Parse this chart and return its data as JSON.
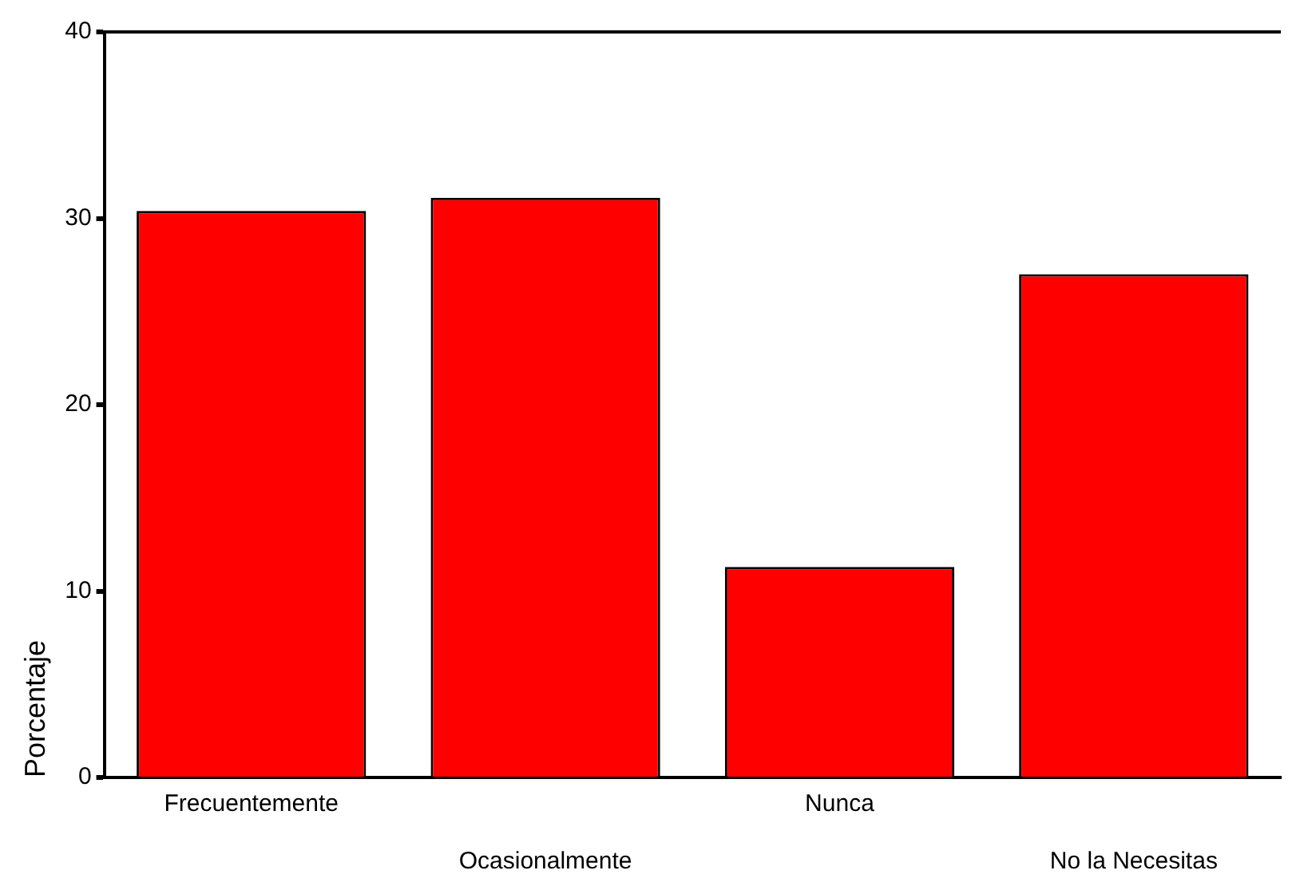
{
  "chart_data": {
    "type": "bar",
    "ylabel": "Porcentaje",
    "categories": [
      "Frecuentemente",
      "Ocasionalmente",
      "Nunca",
      "No la Necesitas"
    ],
    "values": [
      30.4,
      31.1,
      11.3,
      27.0
    ],
    "color": "#ff0000",
    "ylim": [
      0,
      40
    ],
    "yticks": [
      0,
      10,
      20,
      30,
      40
    ],
    "grid": false,
    "legend": false
  }
}
